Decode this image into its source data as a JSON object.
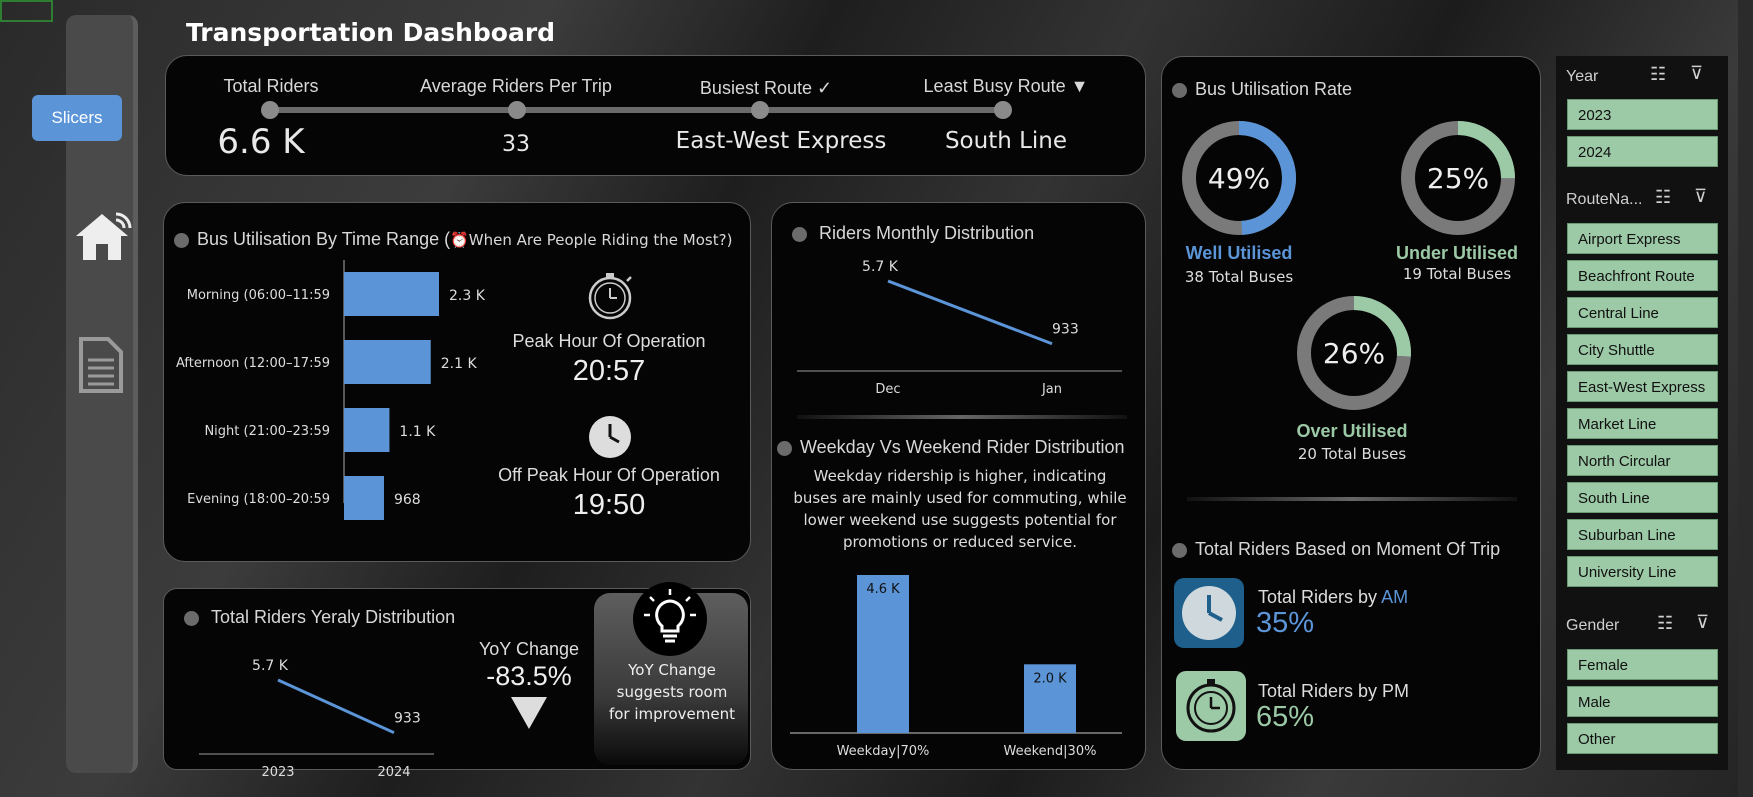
{
  "title": "Transportation Dashboard",
  "nav": {
    "slicers_label": "Slicers"
  },
  "kpis": [
    {
      "label": "Total Riders",
      "value": "6.6 K"
    },
    {
      "label": "Average Riders  Per Trip",
      "value": "33"
    },
    {
      "label": "Busiest Route ✓",
      "value": "East-West Express"
    },
    {
      "label": "Least Busy Route ▼",
      "value": "South Line"
    }
  ],
  "time_range": {
    "title": "Bus Utilisation By Time Range (",
    "title_icon": "alarm-clock-icon",
    "title_suffix": "When Are People Riding the Most?)",
    "chart_data": {
      "type": "bar",
      "orientation": "horizontal",
      "categories": [
        "Morning (06:00–11:59",
        "Afternoon (12:00–17:59",
        "Night (21:00–23:59",
        "Evening (18:00–20:59"
      ],
      "values": [
        2300,
        2100,
        1100,
        968
      ],
      "labels": [
        "2.3 K",
        "2.1 K",
        "1.1 K",
        "968"
      ],
      "color": "#5b95d8"
    },
    "peak_label": "Peak Hour Of Operation",
    "peak_value": "20:57",
    "offpeak_label": "Off Peak Hour Of Operation",
    "offpeak_value": "19:50"
  },
  "monthly": {
    "title": "Riders Monthly Distribution",
    "chart_data": {
      "type": "line",
      "x": [
        "Dec",
        "Jan"
      ],
      "values": [
        5700,
        933
      ],
      "labels": [
        "5.7 K",
        "933"
      ],
      "color": "#5b95d8"
    }
  },
  "weekday": {
    "title": "Weekday Vs Weekend Rider Distribution",
    "description": "Weekday ridership is higher, indicating buses are mainly used for commuting, while lower weekend use suggests potential for promotions or reduced service.",
    "chart_data": {
      "type": "bar",
      "categories": [
        "Weekday|70%",
        "Weekend|30%"
      ],
      "values": [
        4600,
        2000
      ],
      "labels": [
        "4.6 K",
        "2.0 K"
      ],
      "color": "#5b95d8"
    }
  },
  "yearly": {
    "title": "Total Riders Yeraly Distribution",
    "chart_data": {
      "type": "line",
      "x": [
        "2023",
        "2024"
      ],
      "values": [
        5700,
        933
      ],
      "labels": [
        "5.7 K",
        "933"
      ],
      "color": "#5b95d8"
    },
    "yoy_label": "YoY Change",
    "yoy_value": "-83.5%",
    "note": "YoY Change suggests room for improvement"
  },
  "utilisation": {
    "title": "Bus Utilisation Rate",
    "rings": [
      {
        "percent": 49,
        "value_label": "49%",
        "name": "Well Utilised",
        "sub": "38 Total Buses",
        "color": "#5b95d8"
      },
      {
        "percent": 25,
        "value_label": "25%",
        "name": "Under Utilised",
        "sub": "19 Total Buses",
        "color": "#9cc9a6"
      },
      {
        "percent": 26,
        "value_label": "26%",
        "name": "Over Utilised",
        "sub": "20 Total Buses",
        "color": "#9cc9a6"
      }
    ]
  },
  "moment": {
    "title": "Total Riders Based on Moment Of Trip",
    "am_label": "Total Riders by ",
    "am_highlight": "AM",
    "am_value": "35%",
    "pm_label": "Total Riders by PM",
    "pm_value": "65%"
  },
  "slicers": {
    "year": {
      "label": "Year",
      "items": [
        "2023",
        "2024"
      ]
    },
    "route": {
      "label": "RouteNa...",
      "items": [
        "Airport Express",
        "Beachfront Route",
        "Central Line",
        "City Shuttle",
        "East-West Express",
        "Market Line",
        "North Circular",
        "South Line",
        "Suburban Line",
        "University Line"
      ]
    },
    "gender": {
      "label": "Gender",
      "items": [
        "Female",
        "Male",
        "Other"
      ]
    }
  }
}
